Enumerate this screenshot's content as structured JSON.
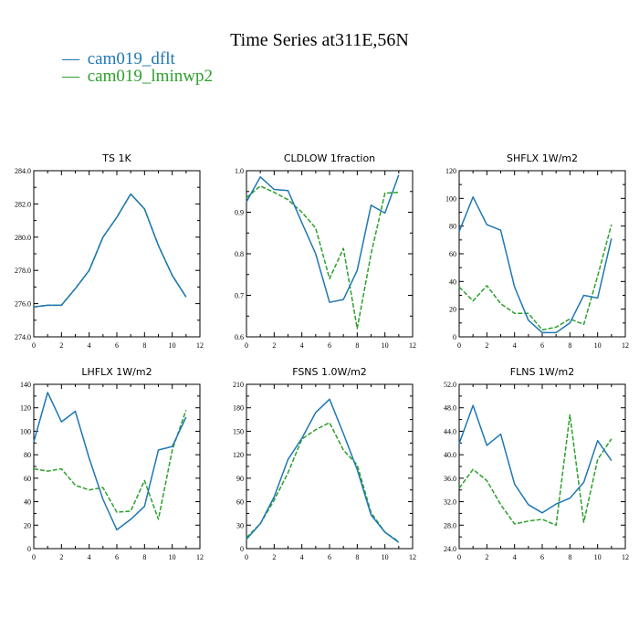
{
  "title": "Time Series at311E,56N",
  "colors": {
    "dflt": "#1f77b4",
    "lminwp2": "#2ca02c",
    "axis": "#000000"
  },
  "legend": [
    {
      "name": "cam019_dflt",
      "marker": "—",
      "color": "#1f77b4",
      "dash": "solid"
    },
    {
      "name": "cam019_lminwp2",
      "marker": "—",
      "color": "#2ca02c",
      "dash": "dashed"
    }
  ],
  "chart_data": [
    {
      "type": "line",
      "title": "TS   1K",
      "x": [
        0,
        1,
        2,
        3,
        4,
        5,
        6,
        7,
        8,
        9,
        10,
        11
      ],
      "xlim": [
        0,
        12
      ],
      "xticks": [
        0,
        2,
        4,
        6,
        8,
        10,
        12
      ],
      "ylim": [
        274,
        284
      ],
      "yticks": [
        "274.0",
        "276.0",
        "278.0",
        "280.0",
        "282.0",
        "284.0"
      ],
      "series": [
        {
          "name": "cam019_dflt",
          "values": [
            275.8,
            275.9,
            275.9,
            276.9,
            278.0,
            280.0,
            281.2,
            282.6,
            281.7,
            279.5,
            277.7,
            276.4
          ]
        },
        {
          "name": "cam019_lminwp2",
          "values": [
            275.8,
            275.9,
            275.9,
            276.9,
            278.0,
            280.0,
            281.2,
            282.6,
            281.7,
            279.5,
            277.7,
            276.4
          ]
        }
      ]
    },
    {
      "type": "line",
      "title": "CLDLOW   1fraction",
      "x": [
        0,
        1,
        2,
        3,
        4,
        5,
        6,
        7,
        8,
        9,
        10,
        11
      ],
      "xlim": [
        0,
        12
      ],
      "xticks": [
        0,
        2,
        4,
        6,
        8,
        10,
        12
      ],
      "ylim": [
        0.6,
        1.0
      ],
      "yticks": [
        "0.6",
        "0.7",
        "0.8",
        "0.9",
        "1.0"
      ],
      "series": [
        {
          "name": "cam019_dflt",
          "values": [
            0.925,
            0.985,
            0.955,
            0.952,
            0.875,
            0.8,
            0.683,
            0.69,
            0.76,
            0.917,
            0.898,
            0.99
          ]
        },
        {
          "name": "cam019_lminwp2",
          "values": [
            0.935,
            0.963,
            0.948,
            0.93,
            0.9,
            0.862,
            0.74,
            0.813,
            0.62,
            0.8,
            0.946,
            0.948
          ]
        }
      ]
    },
    {
      "type": "line",
      "title": "SHFLX   1W/m2",
      "x": [
        0,
        1,
        2,
        3,
        4,
        5,
        6,
        7,
        8,
        9,
        10,
        11
      ],
      "xlim": [
        0,
        12
      ],
      "xticks": [
        0,
        2,
        4,
        6,
        8,
        10,
        12
      ],
      "ylim": [
        0,
        120
      ],
      "yticks": [
        "0",
        "20",
        "40",
        "60",
        "80",
        "100",
        "120"
      ],
      "series": [
        {
          "name": "cam019_dflt",
          "values": [
            76,
            101,
            81,
            77,
            36,
            12,
            3,
            3,
            10,
            30,
            28,
            71
          ]
        },
        {
          "name": "cam019_lminwp2",
          "values": [
            36,
            26,
            37,
            24,
            17,
            17,
            5,
            7,
            13,
            9,
            44,
            81
          ]
        }
      ]
    },
    {
      "type": "line",
      "title": "LHFLX   1W/m2",
      "x": [
        0,
        1,
        2,
        3,
        4,
        5,
        6,
        7,
        8,
        9,
        10,
        11
      ],
      "xlim": [
        0,
        12
      ],
      "xticks": [
        0,
        2,
        4,
        6,
        8,
        10,
        12
      ],
      "ylim": [
        0,
        140
      ],
      "yticks": [
        "0",
        "20",
        "40",
        "60",
        "80",
        "100",
        "120",
        "140"
      ],
      "series": [
        {
          "name": "cam019_dflt",
          "values": [
            91,
            133,
            108,
            117,
            77,
            42,
            16,
            25,
            36,
            84,
            87,
            112
          ]
        },
        {
          "name": "cam019_lminwp2",
          "values": [
            68,
            66,
            68,
            54,
            50,
            52,
            31,
            32,
            58,
            25,
            84,
            118
          ]
        }
      ]
    },
    {
      "type": "line",
      "title": "FSNS   1.0W/m2",
      "x": [
        0,
        1,
        2,
        3,
        4,
        5,
        6,
        7,
        8,
        9,
        10,
        11
      ],
      "xlim": [
        0,
        12
      ],
      "xticks": [
        0,
        2,
        4,
        6,
        8,
        10,
        12
      ],
      "ylim": [
        0,
        210
      ],
      "yticks": [
        "0",
        "30",
        "60",
        "90",
        "120",
        "150",
        "180",
        "210"
      ],
      "series": [
        {
          "name": "cam019_dflt",
          "values": [
            12,
            32,
            66,
            114,
            141,
            174,
            191,
            147,
            101,
            43,
            21,
            8
          ]
        },
        {
          "name": "cam019_lminwp2",
          "values": [
            14,
            32,
            62,
            97,
            140,
            152,
            161,
            126,
            107,
            46,
            21,
            9
          ]
        }
      ]
    },
    {
      "type": "line",
      "title": "FLNS   1W/m2",
      "x": [
        0,
        1,
        2,
        3,
        4,
        5,
        6,
        7,
        8,
        9,
        10,
        11
      ],
      "xlim": [
        0,
        12
      ],
      "xticks": [
        0,
        2,
        4,
        6,
        8,
        10,
        12
      ],
      "ylim": [
        24,
        52
      ],
      "yticks": [
        "24.0",
        "28.0",
        "32.0",
        "36.0",
        "40.0",
        "44.0",
        "48.0",
        "52.0"
      ],
      "series": [
        {
          "name": "cam019_dflt",
          "values": [
            41.9,
            48.4,
            41.6,
            43.5,
            35.0,
            31.5,
            30.1,
            31.6,
            32.6,
            35.3,
            42.4,
            39.0
          ]
        },
        {
          "name": "cam019_lminwp2",
          "values": [
            34.3,
            37.5,
            35.6,
            31.5,
            28.2,
            28.7,
            29.0,
            28.0,
            46.8,
            28.5,
            39.2,
            42.7
          ]
        }
      ]
    }
  ]
}
